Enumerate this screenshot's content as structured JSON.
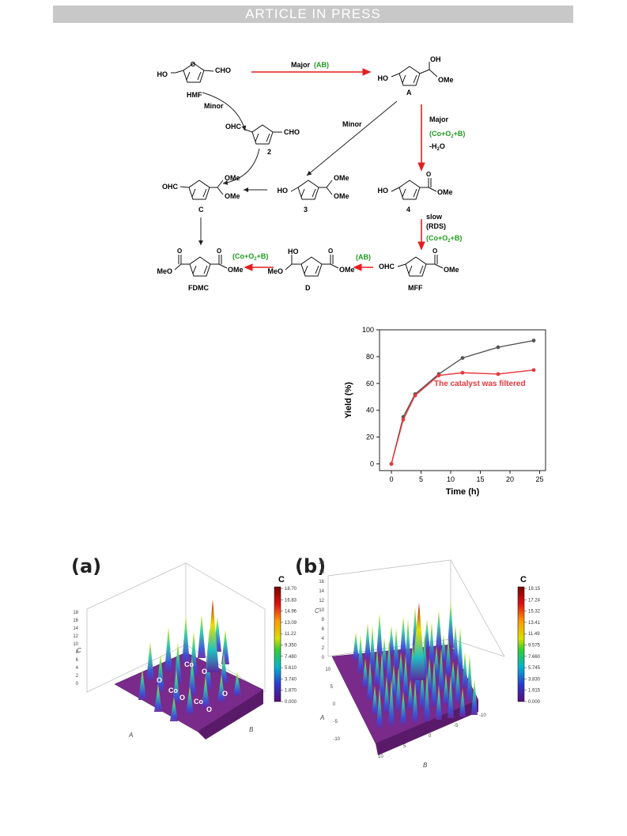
{
  "header": {
    "banner": "ARTICLE IN PRESS"
  },
  "scheme": {
    "compounds": {
      "hmf": "HMF",
      "a": "A",
      "two": "2",
      "c": "C",
      "three": "3",
      "four": "4",
      "fdmc": "FDMC",
      "d": "D",
      "mff": "MFF"
    },
    "groups": {
      "ho": "HO",
      "cho": "CHO",
      "ohc": "OHC",
      "oh": "OH",
      "ome": "OMe",
      "meo": "MeO",
      "o": "O"
    },
    "arrows": {
      "major": "Major",
      "major_ab": "(AB)",
      "minor": "Minor",
      "co_o2_b": "(Co+O",
      "co_o2_b_end": "+B)",
      "sub2": "2",
      "minus_h2o": "-H",
      "h2o_end": "O",
      "slow": "slow",
      "rds": "(RDS)",
      "ab": "(AB)"
    },
    "colors": {
      "red": "#e41e1e",
      "green": "#1e9b1e"
    }
  },
  "chart_data": {
    "type": "line",
    "xlabel": "Time (h)",
    "ylabel": "Yield (%)",
    "xlim": [
      -2,
      26
    ],
    "ylim": [
      -5,
      100
    ],
    "xticks": [
      0,
      5,
      10,
      15,
      20,
      25
    ],
    "yticks": [
      0,
      20,
      40,
      60,
      80,
      100
    ],
    "annotation": "The catalyst was filtered",
    "series": [
      {
        "color": "#555555",
        "x": [
          0,
          2,
          4,
          8,
          12,
          18,
          24
        ],
        "values": [
          0,
          35,
          52,
          67,
          79,
          87,
          92
        ]
      },
      {
        "color": "#e8383d",
        "x": [
          0,
          2,
          4,
          8,
          12,
          18,
          24
        ],
        "values": [
          0,
          33,
          51,
          66,
          68,
          67,
          70
        ]
      }
    ]
  },
  "figure3d": {
    "a": {
      "label": "(a)",
      "colorbar_title": "C",
      "colorbar_ticks": [
        "18.70",
        "16.83",
        "14.96",
        "13.09",
        "11.22",
        "9.350",
        "7.480",
        "5.610",
        "3.740",
        "1.870",
        "0.000"
      ],
      "atoms": [
        "O",
        "Co",
        "O",
        "O",
        "Co",
        "O",
        "Co",
        "O",
        "O"
      ],
      "z_ticks": [
        "18",
        "16",
        "14",
        "12",
        "10",
        "8",
        "6",
        "4",
        "2",
        "0"
      ],
      "axis_z": "C",
      "axis_a": "A",
      "axis_b": "B"
    },
    "b": {
      "label": "(b)",
      "colorbar_title": "C",
      "colorbar_ticks": [
        "19.15",
        "17.24",
        "15.32",
        "13.41",
        "11.49",
        "9.575",
        "7.660",
        "5.745",
        "3.830",
        "1.915",
        "0.000"
      ],
      "z_ticks": [
        "20",
        "18",
        "16",
        "14",
        "12",
        "10",
        "8",
        "6",
        "4",
        "2",
        "0"
      ],
      "y_ticks": [
        "10",
        "5",
        "0",
        "-5",
        "-10"
      ],
      "x_ticks": [
        "10",
        "5",
        "0",
        "-5",
        "-10"
      ],
      "axis_z": "C",
      "axis_a": "A",
      "axis_b": "B"
    }
  }
}
